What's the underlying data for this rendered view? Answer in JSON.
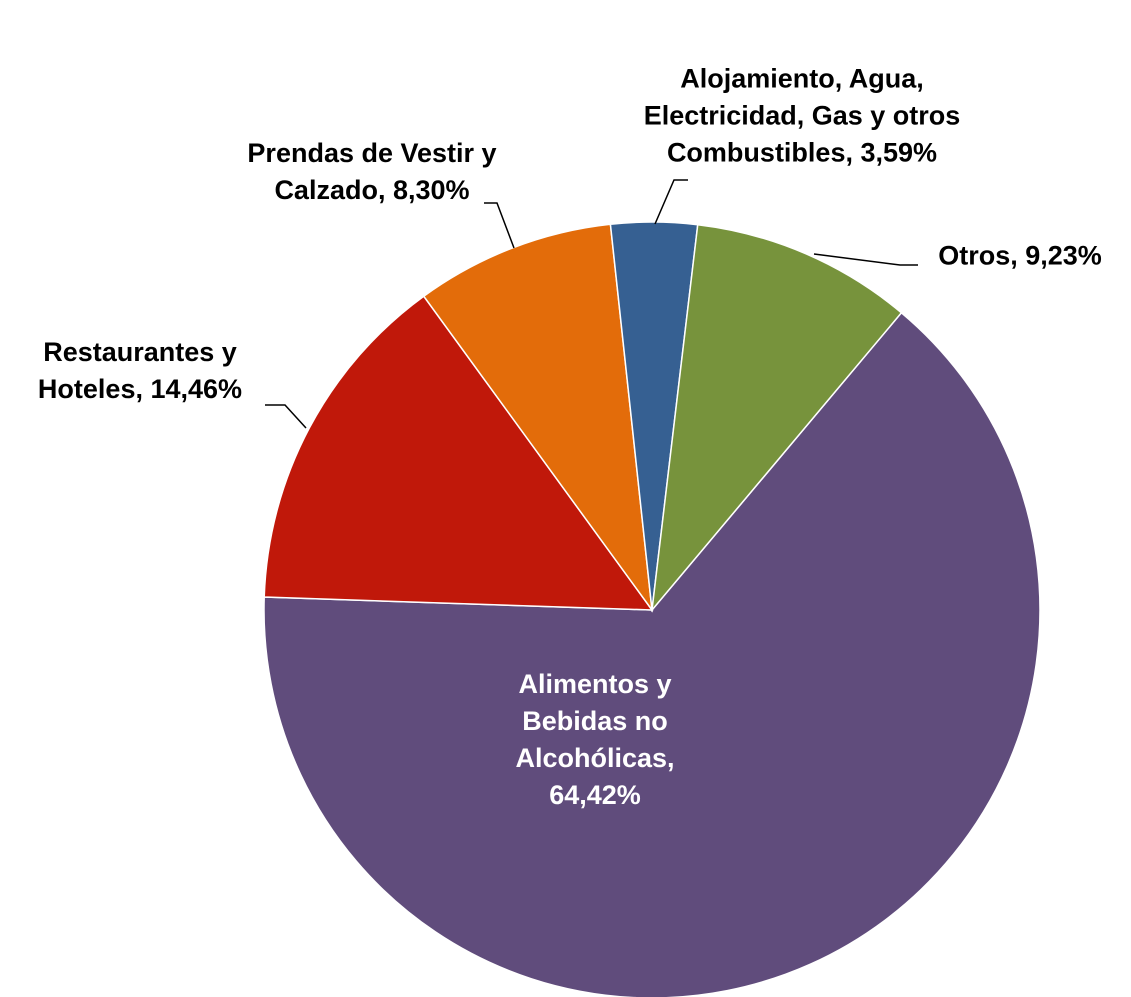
{
  "chart_data": {
    "type": "pie",
    "categories": [
      "Alimentos y Bebidas no Alcohólicas",
      "Restaurantes y Hoteles",
      "Prendas de Vestir y Calzado",
      "Alojamiento, Agua, Electricidad, Gas y otros Combustibles",
      "Otros"
    ],
    "values": [
      64.42,
      14.46,
      8.3,
      3.59,
      9.23
    ],
    "value_labels": [
      "64,42%",
      "14,46%",
      "8,30%",
      "3,59%",
      "9,23%"
    ],
    "colors": [
      "#604c7c",
      "#c0180a",
      "#e36c0a",
      "#366092",
      "#77933c"
    ]
  }
}
